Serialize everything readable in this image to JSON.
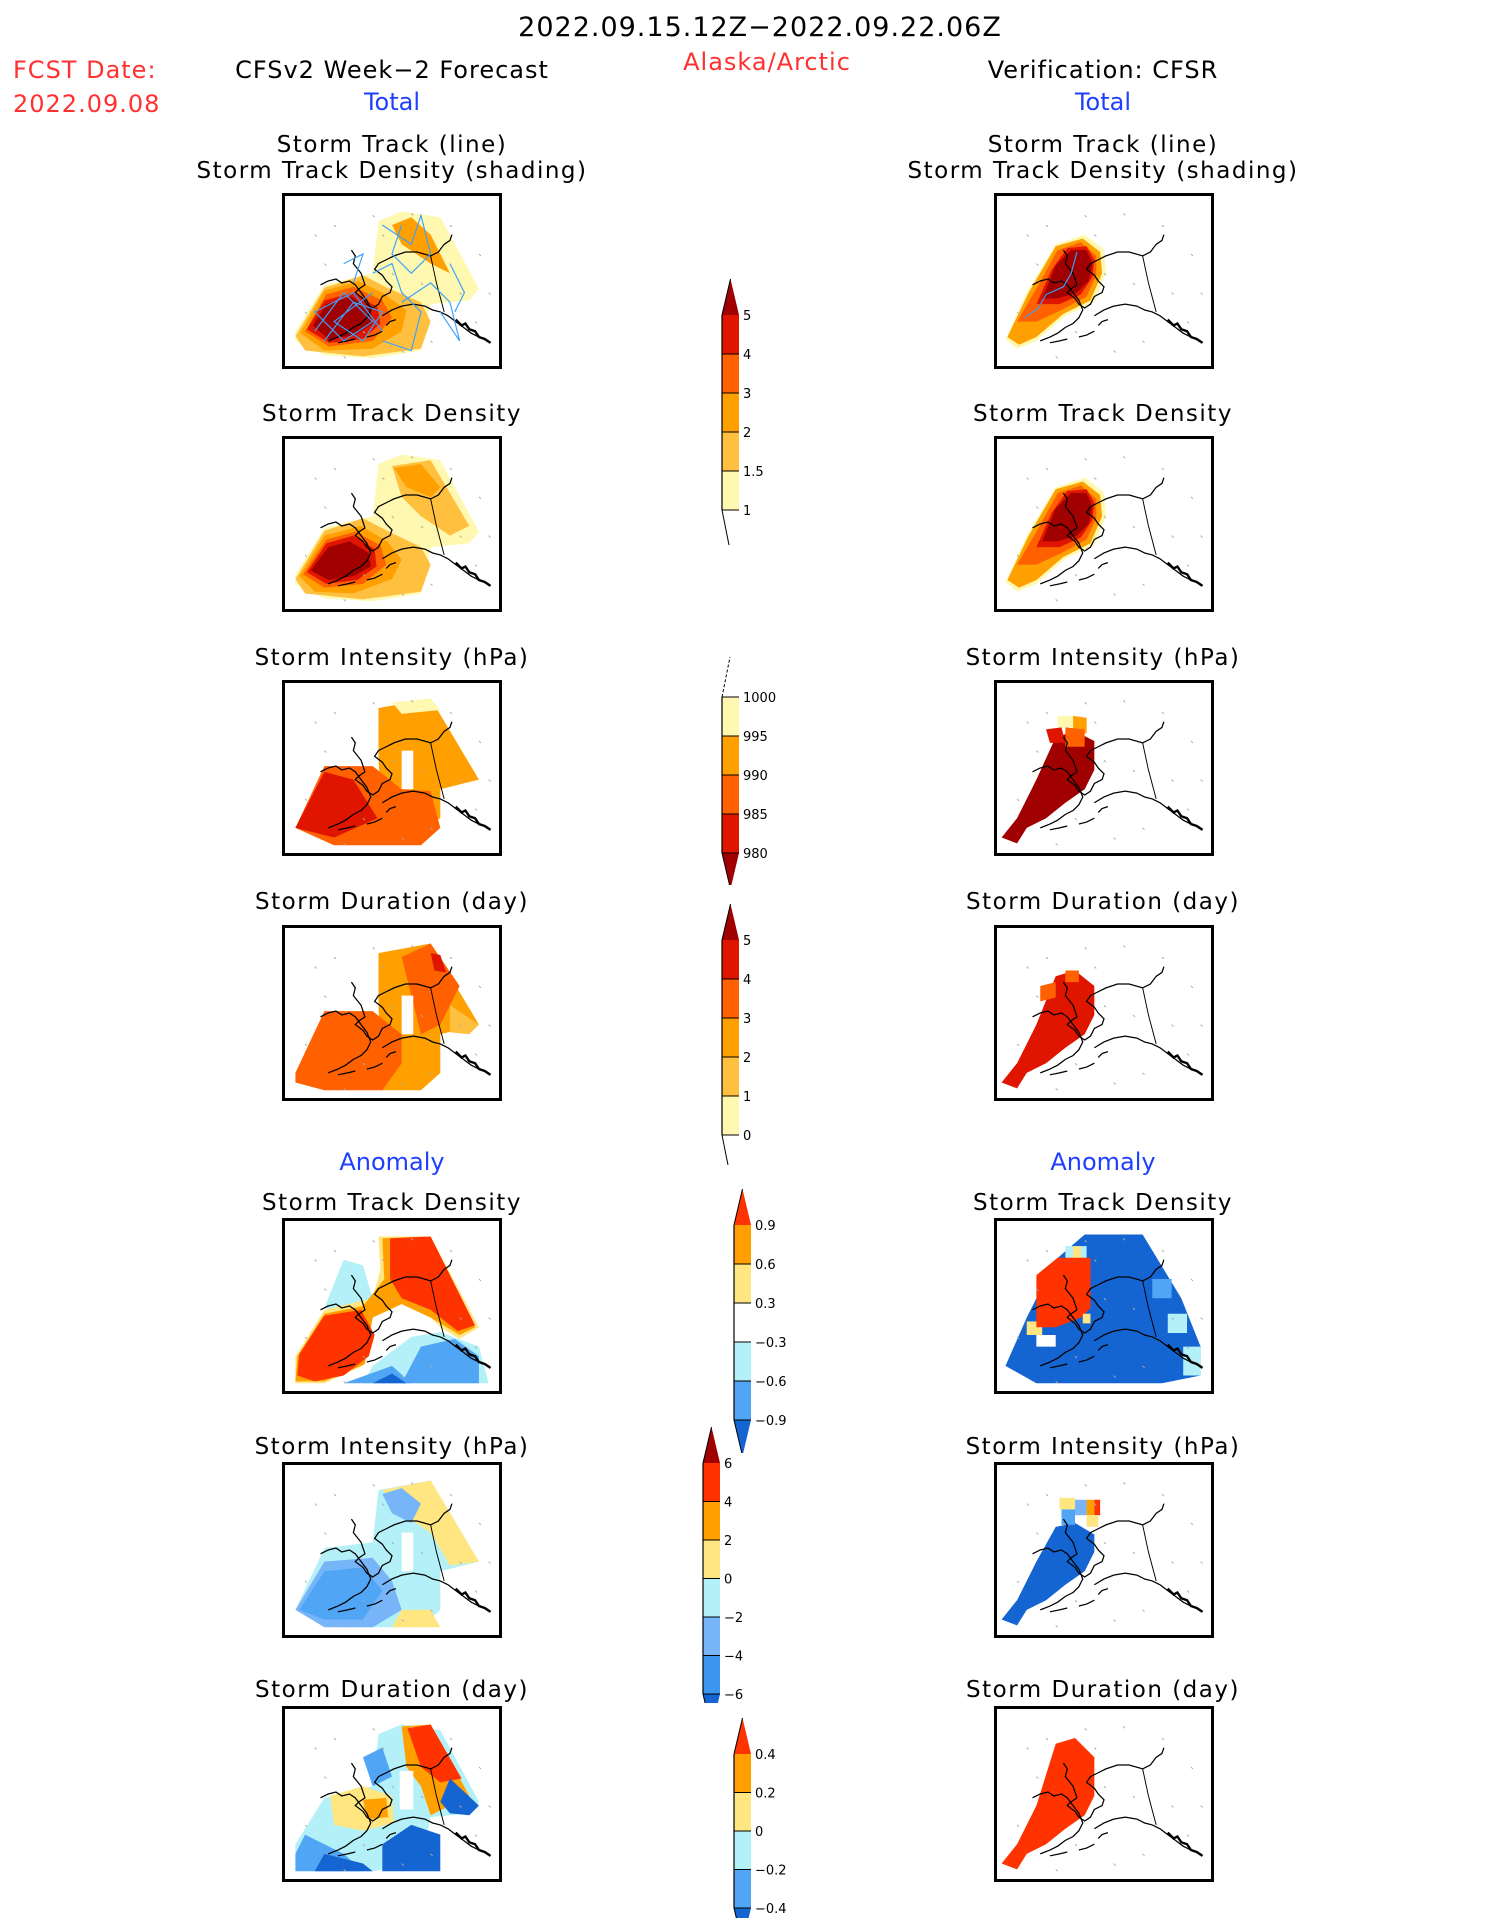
{
  "header": {
    "period": "2022.09.15.12Z−2022.09.22.06Z",
    "region": "Alaska/Arctic",
    "fcst_label": "FCST Date:",
    "fcst_date": "2022.09.08",
    "left_title": "CFSv2 Week−2 Forecast",
    "right_title": "Verification: CFSR"
  },
  "sections": {
    "total": "Total",
    "anomaly": "Anomaly"
  },
  "panel_titles": {
    "track_line": "Storm Track (line)",
    "track_density_shading": "Storm Track Density (shading)",
    "track_density": "Storm Track Density",
    "intensity": "Storm Intensity (hPa)",
    "duration": "Storm Duration (day)"
  },
  "colorbars": {
    "total_density": {
      "labels": [
        "5",
        "4",
        "3",
        "2",
        "1.5",
        "1"
      ],
      "colors": [
        "#a00000",
        "#e01500",
        "#ff6000",
        "#ffa000",
        "#ffc040",
        "#fff8b0"
      ],
      "arrow_top": true,
      "arrow_bottom": false
    },
    "total_intensity": {
      "labels": [
        "1000",
        "995",
        "990",
        "985",
        "980"
      ],
      "colors": [
        "#fff8b0",
        "#ffa000",
        "#ff6000",
        "#e01500",
        "#a00000"
      ],
      "arrow_top": false,
      "arrow_bottom": true
    },
    "total_duration": {
      "labels": [
        "5",
        "4",
        "3",
        "2",
        "1",
        "0"
      ],
      "colors": [
        "#a00000",
        "#e01500",
        "#ff6000",
        "#ffa000",
        "#ffc040",
        "#fff8b0"
      ],
      "arrow_top": true,
      "arrow_bottom": false
    },
    "anom_density": {
      "labels": [
        "0.9",
        "0.6",
        "0.3",
        "−0.3",
        "−0.6",
        "−0.9"
      ],
      "colors": [
        "#ff3300",
        "#ffa000",
        "#ffe680",
        "#ffffff",
        "#b4f0f8",
        "#50a5f5",
        "#1464d2"
      ],
      "arrow_top": true,
      "arrow_bottom": true
    },
    "anom_intensity": {
      "labels": [
        "6",
        "4",
        "2",
        "0",
        "−2",
        "−4",
        "−6"
      ],
      "colors": [
        "#a00000",
        "#ff3300",
        "#ffa000",
        "#ffe680",
        "#b4f0f8",
        "#78b4f8",
        "#3c96f0",
        "#1464d2"
      ],
      "arrow_top": true,
      "arrow_bottom": true
    },
    "anom_duration": {
      "labels": [
        "0.4",
        "0.2",
        "0",
        "−0.2",
        "−0.4"
      ],
      "colors": [
        "#ff3300",
        "#ffa000",
        "#ffe680",
        "#b4f0f8",
        "#50a5f5",
        "#1464d2"
      ],
      "arrow_top": true,
      "arrow_bottom": true
    }
  },
  "maps": {
    "left": [
      "fcst-track",
      "fcst-density",
      "fcst-intensity",
      "fcst-duration",
      "fcst-anom-density",
      "fcst-anom-intensity",
      "fcst-anom-duration"
    ],
    "right": [
      "obs-track",
      "obs-density",
      "obs-intensity",
      "obs-duration",
      "obs-anom-density",
      "obs-anom-intensity",
      "obs-anom-duration"
    ]
  },
  "colors": {
    "title_red": "#ff3030",
    "section_blue": "#1f3fff",
    "track_line": "#3aa0ff"
  }
}
